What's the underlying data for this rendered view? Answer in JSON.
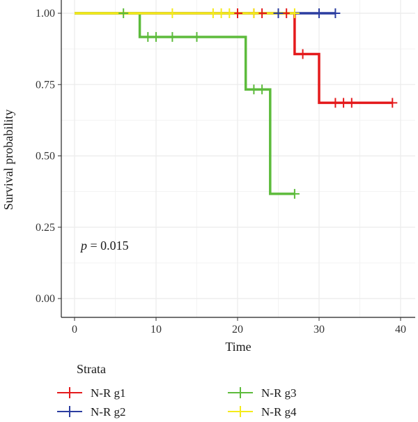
{
  "chart_data": {
    "type": "line",
    "subtype": "kaplan-meier-step",
    "xlabel": "Time",
    "ylabel": "Survival probability",
    "xlim": [
      -1,
      40
    ],
    "ylim": [
      0,
      1
    ],
    "x_ticks": [
      0,
      10,
      20,
      30,
      40
    ],
    "y_ticks": [
      0.0,
      0.25,
      0.5,
      0.75,
      1.0
    ],
    "y_tick_labels": [
      "0.00",
      "0.25",
      "0.50",
      "0.75",
      "1.00"
    ],
    "grid": true,
    "annotation": {
      "p_italic": "p",
      "rest": " = 0.015"
    },
    "legend": {
      "title": "Strata",
      "placement": "bottom"
    },
    "series": [
      {
        "name": "N-R g1",
        "color": "#E41A1C",
        "steps": [
          [
            0,
            1.0
          ],
          [
            27,
            0.857
          ],
          [
            30,
            0.686
          ],
          [
            39,
            0.686
          ]
        ],
        "censor": [
          [
            20,
            1.0
          ],
          [
            22,
            1.0
          ],
          [
            23,
            1.0
          ],
          [
            25,
            1.0
          ],
          [
            26,
            1.0
          ],
          [
            28,
            0.857
          ],
          [
            32,
            0.686
          ],
          [
            33,
            0.686
          ],
          [
            34,
            0.686
          ],
          [
            39,
            0.686
          ]
        ]
      },
      {
        "name": "N-R g2",
        "color": "#2B3DA0",
        "steps": [
          [
            0,
            1.0
          ],
          [
            32,
            1.0
          ]
        ],
        "censor": [
          [
            25,
            1.0
          ],
          [
            30,
            1.0
          ],
          [
            32,
            1.0
          ]
        ]
      },
      {
        "name": "N-R g3",
        "color": "#5DBB3C",
        "steps": [
          [
            0,
            1.0
          ],
          [
            8,
            0.917
          ],
          [
            21,
            0.733
          ],
          [
            24,
            0.367
          ],
          [
            27,
            0.367
          ]
        ],
        "censor": [
          [
            6,
            1.0
          ],
          [
            9,
            0.917
          ],
          [
            10,
            0.917
          ],
          [
            12,
            0.917
          ],
          [
            15,
            0.917
          ],
          [
            22,
            0.733
          ],
          [
            23,
            0.733
          ],
          [
            27,
            0.367
          ]
        ]
      },
      {
        "name": "N-R g4",
        "color": "#F5EB1A",
        "steps": [
          [
            0,
            1.0
          ],
          [
            27,
            1.0
          ]
        ],
        "censor": [
          [
            12,
            1.0
          ],
          [
            17,
            1.0
          ],
          [
            18,
            1.0
          ],
          [
            19,
            1.0
          ],
          [
            22,
            1.0
          ],
          [
            27,
            1.0
          ]
        ]
      }
    ]
  }
}
